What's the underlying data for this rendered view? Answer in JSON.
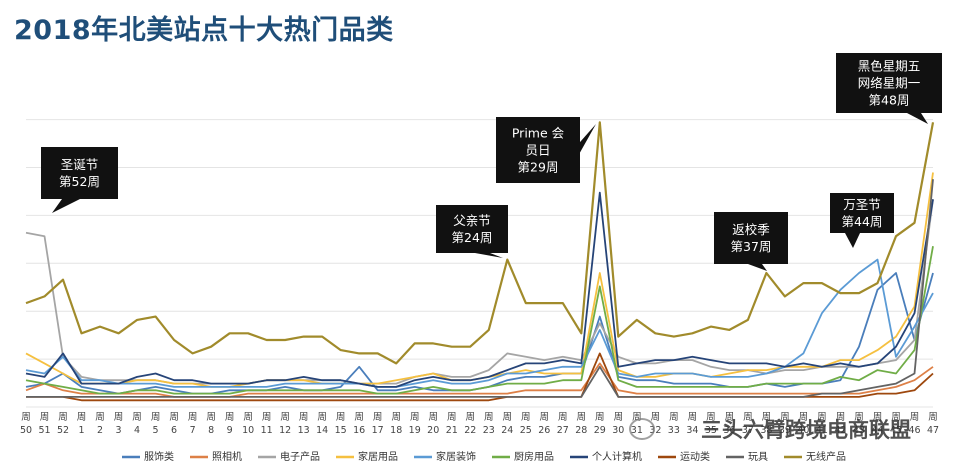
{
  "title": "2018年北美站点十大热门品类",
  "watermark": "三头六臂跨境电商联盟",
  "chart_data": {
    "type": "line",
    "title": "2018年北美站点十大热门品类",
    "xlabel": "",
    "ylabel": "",
    "ylim": [
      0,
      100
    ],
    "grid": true,
    "legend": "bottom",
    "x": [
      "周50",
      "周51",
      "周52",
      "周1",
      "周2",
      "周3",
      "周4",
      "周5",
      "周6",
      "周7",
      "周8",
      "周9",
      "周10",
      "周11",
      "周12",
      "周13",
      "周14",
      "周15",
      "周16",
      "周17",
      "周18",
      "周19",
      "周20",
      "周21",
      "周22",
      "周23",
      "周24",
      "周25",
      "周26",
      "周27",
      "周28",
      "周29",
      "周30",
      "周31",
      "周32",
      "周33",
      "周34",
      "周35",
      "周36",
      "周37",
      "周38",
      "周39",
      "周40",
      "周41",
      "周42",
      "周43",
      "周44",
      "周45",
      "周46",
      "周47"
    ],
    "series": [
      {
        "name": "服饰类",
        "color": "#4a7ebb",
        "values": [
          6,
          7,
          10,
          6,
          5,
          4,
          5,
          6,
          5,
          4,
          4,
          5,
          5,
          5,
          6,
          5,
          5,
          6,
          12,
          5,
          5,
          6,
          5,
          5,
          5,
          6,
          8,
          9,
          9,
          10,
          10,
          27,
          9,
          8,
          8,
          7,
          7,
          7,
          6,
          6,
          7,
          6,
          7,
          7,
          8,
          18,
          35,
          40,
          20,
          40
        ]
      },
      {
        "name": "照相机",
        "color": "#dd8047",
        "values": [
          5,
          7,
          5,
          4,
          4,
          4,
          4,
          4,
          3,
          3,
          3,
          3,
          4,
          4,
          4,
          4,
          4,
          4,
          4,
          4,
          4,
          4,
          4,
          4,
          4,
          4,
          4,
          5,
          5,
          5,
          5,
          13,
          5,
          4,
          4,
          4,
          4,
          4,
          4,
          4,
          4,
          4,
          4,
          4,
          4,
          4,
          5,
          6,
          8,
          12
        ]
      },
      {
        "name": "电子产品",
        "color": "#a5a5a5",
        "values": [
          52,
          51,
          15,
          9,
          8,
          8,
          8,
          8,
          7,
          7,
          7,
          7,
          7,
          8,
          8,
          8,
          8,
          8,
          7,
          7,
          7,
          9,
          10,
          9,
          9,
          11,
          16,
          15,
          14,
          15,
          14,
          25,
          15,
          13,
          13,
          14,
          14,
          12,
          11,
          11,
          10,
          11,
          11,
          12,
          12,
          12,
          13,
          14,
          20,
          62
        ]
      },
      {
        "name": "家居用品",
        "color": "#f5c040",
        "values": [
          16,
          13,
          10,
          7,
          7,
          7,
          8,
          8,
          7,
          7,
          6,
          6,
          7,
          8,
          8,
          8,
          7,
          7,
          7,
          7,
          8,
          9,
          10,
          8,
          8,
          9,
          10,
          11,
          10,
          10,
          10,
          40,
          11,
          9,
          9,
          10,
          10,
          9,
          10,
          11,
          11,
          12,
          12,
          12,
          14,
          14,
          17,
          21,
          30,
          70
        ]
      },
      {
        "name": "家居装饰",
        "color": "#5b9bd5",
        "values": [
          11,
          10,
          15,
          8,
          8,
          7,
          7,
          7,
          6,
          6,
          6,
          6,
          6,
          6,
          7,
          7,
          7,
          7,
          7,
          6,
          6,
          7,
          8,
          7,
          7,
          8,
          10,
          10,
          11,
          12,
          12,
          23,
          10,
          9,
          10,
          10,
          10,
          9,
          9,
          9,
          10,
          12,
          16,
          28,
          35,
          40,
          44,
          15,
          24,
          34
        ]
      },
      {
        "name": "厨房用品",
        "color": "#70ad47",
        "values": [
          8,
          7,
          6,
          5,
          4,
          4,
          5,
          5,
          4,
          4,
          4,
          4,
          5,
          5,
          5,
          5,
          5,
          5,
          5,
          4,
          4,
          5,
          6,
          5,
          5,
          6,
          7,
          7,
          7,
          8,
          8,
          36,
          8,
          6,
          6,
          6,
          6,
          6,
          6,
          6,
          7,
          7,
          7,
          7,
          9,
          8,
          11,
          10,
          17,
          48
        ]
      },
      {
        "name": "个人计算机",
        "color": "#264478",
        "values": [
          10,
          9,
          16,
          7,
          7,
          7,
          9,
          10,
          8,
          8,
          7,
          7,
          7,
          8,
          8,
          9,
          8,
          8,
          7,
          6,
          6,
          8,
          9,
          8,
          8,
          9,
          11,
          13,
          13,
          14,
          13,
          64,
          12,
          13,
          14,
          14,
          15,
          14,
          13,
          13,
          13,
          12,
          13,
          12,
          13,
          12,
          13,
          18,
          28,
          62
        ]
      },
      {
        "name": "运动类",
        "color": "#9e480e",
        "values": [
          3,
          3,
          3,
          2,
          2,
          2,
          2,
          2,
          2,
          2,
          2,
          2,
          2,
          2,
          2,
          2,
          2,
          2,
          2,
          2,
          2,
          2,
          2,
          2,
          2,
          2,
          3,
          3,
          3,
          3,
          3,
          16,
          3,
          3,
          3,
          3,
          3,
          3,
          3,
          3,
          3,
          3,
          3,
          3,
          3,
          3,
          4,
          4,
          5,
          10
        ]
      },
      {
        "name": "玩具",
        "color": "#636363",
        "values": [
          3,
          3,
          3,
          3,
          3,
          3,
          3,
          3,
          3,
          3,
          3,
          3,
          3,
          3,
          3,
          3,
          3,
          3,
          3,
          3,
          3,
          3,
          3,
          3,
          3,
          3,
          3,
          3,
          3,
          3,
          3,
          12,
          3,
          3,
          3,
          3,
          3,
          3,
          3,
          3,
          3,
          3,
          3,
          4,
          4,
          5,
          6,
          7,
          10,
          68
        ]
      },
      {
        "name": "无线产品",
        "color": "#a18b2b",
        "values": [
          31,
          33,
          38,
          22,
          24,
          22,
          26,
          27,
          20,
          16,
          18,
          22,
          22,
          20,
          20,
          21,
          21,
          17,
          16,
          16,
          13,
          19,
          19,
          18,
          18,
          23,
          44,
          31,
          31,
          31,
          22,
          85,
          21,
          26,
          22,
          21,
          22,
          24,
          23,
          26,
          40,
          33,
          37,
          37,
          34,
          34,
          37,
          51,
          55,
          85
        ]
      }
    ],
    "annotations": [
      {
        "lines": [
          "圣诞节",
          "第52周"
        ]
      },
      {
        "lines": [
          "父亲节",
          "第24周"
        ]
      },
      {
        "lines": [
          "Prime 会",
          "员日",
          "第29周"
        ]
      },
      {
        "lines": [
          "返校季",
          "第37周"
        ]
      },
      {
        "lines": [
          "万圣节",
          "第44周"
        ]
      },
      {
        "lines": [
          "黑色星期五",
          "网络星期一",
          "第48周"
        ]
      }
    ]
  }
}
